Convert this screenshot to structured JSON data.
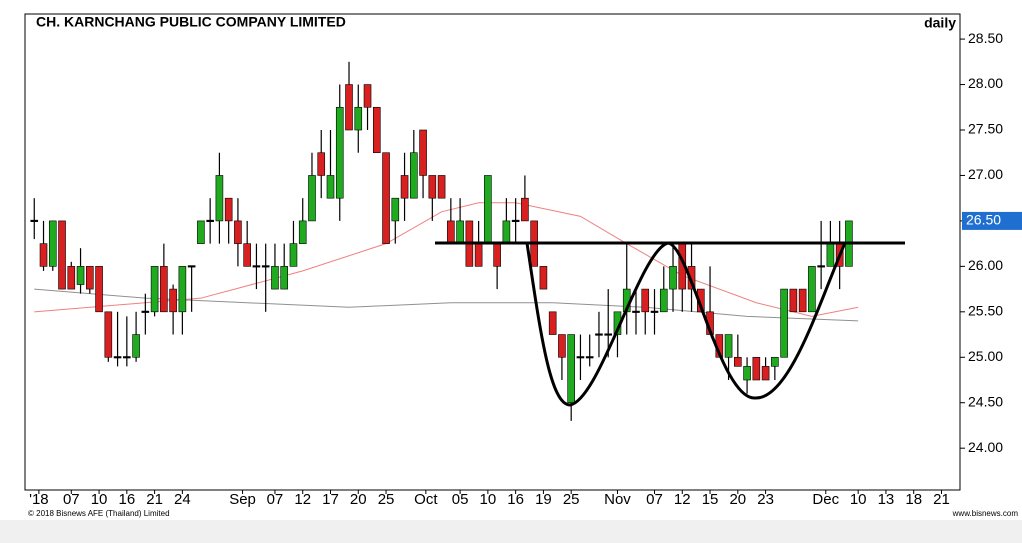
{
  "chart_data": {
    "type": "candlestick",
    "title": "CH. KARNCHANG PUBLIC COMPANY LIMITED",
    "period": "daily",
    "copyright": "© 2018 Bisnews AFE (Thailand) Limited",
    "source": "www.bisnews.com",
    "up_color": "#1faa1f",
    "down_color": "#d82020",
    "open": [
      26.5,
      26.25,
      26.0,
      26.5,
      26.0,
      25.8,
      26.0,
      26.0,
      25.5,
      25.0,
      25.0,
      25.0,
      25.5,
      25.5,
      26.0,
      25.75,
      25.5,
      26.0,
      26.25,
      26.5,
      26.5,
      26.75,
      26.5,
      26.25,
      26.0,
      26.0,
      25.75,
      25.75,
      26.0,
      26.25,
      26.5,
      27.25,
      26.75,
      26.75,
      28.0,
      27.5,
      28.0,
      27.75,
      27.25,
      26.5,
      27.0,
      26.75,
      27.5,
      27.0,
      27.0,
      26.5,
      26.25,
      26.5,
      26.25,
      26.25,
      26.25,
      26.25,
      26.5,
      26.75,
      26.5,
      26.0,
      25.5,
      25.25,
      24.5,
      25.0,
      25.0,
      25.25,
      25.25,
      25.25,
      25.5,
      25.5,
      25.75,
      25.5,
      25.5,
      25.75,
      26.25,
      26.0,
      25.75,
      25.5,
      25.25,
      25.0,
      25.0,
      24.75,
      25.0,
      24.9,
      24.9,
      25.0,
      25.75,
      25.75,
      25.5,
      26.0,
      26.0,
      26.25,
      26.0
    ],
    "high": [
      26.75,
      26.5,
      26.5,
      26.5,
      26.05,
      26.2,
      26.0,
      26.0,
      25.5,
      25.5,
      25.45,
      25.5,
      25.7,
      26.0,
      26.25,
      25.8,
      26.0,
      26.0,
      26.5,
      26.75,
      27.25,
      26.75,
      26.75,
      26.5,
      26.25,
      26.25,
      26.25,
      26.25,
      26.5,
      26.75,
      27.25,
      27.5,
      27.5,
      28.0,
      28.25,
      28.0,
      28.0,
      27.75,
      27.25,
      26.75,
      27.25,
      27.5,
      27.5,
      27.0,
      27.0,
      26.75,
      26.75,
      26.5,
      26.5,
      27.0,
      26.25,
      26.75,
      26.75,
      27.0,
      26.5,
      26.0,
      25.5,
      25.25,
      25.25,
      25.25,
      25.25,
      25.5,
      25.75,
      25.5,
      26.25,
      25.75,
      25.75,
      25.75,
      26.0,
      26.25,
      26.25,
      26.25,
      25.75,
      26.0,
      25.25,
      25.25,
      25.25,
      25.0,
      25.0,
      25.0,
      25.0,
      25.75,
      25.75,
      25.75,
      26.0,
      26.5,
      26.5,
      26.5,
      26.5
    ],
    "low": [
      26.3,
      25.95,
      25.95,
      25.75,
      25.75,
      25.7,
      25.7,
      25.5,
      24.95,
      24.9,
      24.9,
      24.95,
      25.25,
      25.45,
      25.5,
      25.25,
      25.25,
      25.5,
      26.25,
      26.25,
      26.25,
      26.25,
      26.0,
      26.0,
      25.75,
      25.5,
      25.75,
      25.75,
      26.0,
      26.25,
      26.5,
      26.75,
      26.75,
      26.5,
      27.5,
      27.25,
      27.5,
      27.25,
      26.25,
      26.25,
      26.5,
      26.75,
      26.75,
      26.5,
      26.75,
      26.25,
      26.25,
      26.0,
      26.0,
      26.25,
      25.75,
      26.25,
      26.25,
      26.5,
      26.0,
      25.75,
      25.25,
      24.75,
      24.3,
      24.75,
      24.9,
      25.0,
      25.0,
      25.0,
      25.25,
      25.25,
      25.25,
      25.25,
      25.5,
      25.5,
      25.5,
      25.5,
      25.5,
      25.25,
      25.0,
      24.75,
      24.9,
      24.6,
      24.75,
      24.75,
      24.75,
      25.0,
      25.5,
      25.5,
      25.5,
      25.75,
      26.0,
      25.75,
      26.0
    ],
    "close": [
      26.5,
      26.0,
      26.5,
      25.75,
      25.75,
      26.0,
      25.75,
      25.5,
      25.0,
      25.0,
      25.0,
      25.25,
      25.5,
      26.0,
      25.5,
      25.5,
      26.0,
      26.0,
      26.5,
      26.5,
      27.0,
      26.5,
      26.25,
      26.0,
      26.0,
      26.0,
      26.0,
      26.0,
      26.25,
      26.5,
      27.0,
      27.0,
      27.0,
      27.75,
      27.5,
      27.75,
      27.75,
      27.25,
      26.25,
      26.75,
      26.75,
      27.25,
      27.0,
      26.75,
      26.75,
      26.25,
      26.5,
      26.0,
      26.0,
      27.0,
      26.0,
      26.5,
      26.5,
      26.5,
      26.0,
      25.75,
      25.25,
      25.0,
      25.25,
      25.0,
      25.0,
      25.25,
      25.25,
      25.5,
      25.75,
      25.5,
      25.5,
      25.5,
      25.75,
      26.0,
      25.75,
      25.75,
      25.5,
      25.25,
      25.0,
      25.25,
      24.9,
      24.9,
      24.75,
      24.75,
      25.0,
      25.75,
      25.5,
      25.5,
      26.0,
      26.0,
      26.25,
      26.0,
      26.5
    ],
    "moving_averages": [
      {
        "color": "#f08080",
        "x": [
          0,
          18,
          29,
          38,
          44,
          48,
          52,
          59,
          64,
          70,
          78,
          84,
          89
        ],
        "values": [
          25.5,
          25.65,
          25.95,
          26.25,
          26.6,
          26.7,
          26.7,
          26.55,
          26.25,
          25.9,
          25.6,
          25.45,
          25.55
        ]
      },
      {
        "color": "#909090",
        "x": [
          0,
          12,
          23,
          34,
          45,
          56,
          66,
          77,
          89
        ],
        "values": [
          25.75,
          25.65,
          25.6,
          25.55,
          25.6,
          25.6,
          25.55,
          25.45,
          25.4
        ]
      }
    ],
    "last_price": {
      "value": 26.5,
      "label": "26.50"
    },
    "xlim": [
      -1,
      100
    ],
    "xticks": [
      {
        "value": 0.5,
        "label": "'18"
      },
      {
        "value": 4,
        "label": "07"
      },
      {
        "value": 7,
        "label": "10"
      },
      {
        "value": 10,
        "label": "16"
      },
      {
        "value": 13,
        "label": "21"
      },
      {
        "value": 16,
        "label": "24"
      },
      {
        "value": 22.5,
        "label": "Sep"
      },
      {
        "value": 26,
        "label": "07"
      },
      {
        "value": 29,
        "label": "12"
      },
      {
        "value": 32,
        "label": "17"
      },
      {
        "value": 35,
        "label": "20"
      },
      {
        "value": 38,
        "label": "25"
      },
      {
        "value": 42.3,
        "label": "Oct"
      },
      {
        "value": 46,
        "label": "05"
      },
      {
        "value": 49,
        "label": "10"
      },
      {
        "value": 52,
        "label": "16"
      },
      {
        "value": 55,
        "label": "19"
      },
      {
        "value": 58,
        "label": "25"
      },
      {
        "value": 63,
        "label": "Nov"
      },
      {
        "value": 67,
        "label": "07"
      },
      {
        "value": 70,
        "label": "12"
      },
      {
        "value": 73,
        "label": "15"
      },
      {
        "value": 76,
        "label": "20"
      },
      {
        "value": 79,
        "label": "23"
      },
      {
        "value": 85.5,
        "label": "Dec"
      },
      {
        "value": 89,
        "label": "10"
      },
      {
        "value": 92,
        "label": "13"
      },
      {
        "value": 95,
        "label": "18"
      },
      {
        "value": 98,
        "label": "21"
      }
    ],
    "ylim": [
      23.54,
      28.6
    ],
    "yticks": [
      {
        "value": 24,
        "label": "24.00"
      },
      {
        "value": 24.5,
        "label": "24.50"
      },
      {
        "value": 25,
        "label": "25.00"
      },
      {
        "value": 25.5,
        "label": "25.50"
      },
      {
        "value": 26,
        "label": "26.00"
      },
      {
        "value": 26.5,
        "label": "26.50"
      },
      {
        "value": 27,
        "label": "27.00"
      },
      {
        "value": 27.5,
        "label": "27.50"
      },
      {
        "value": 28,
        "label": "28.00"
      },
      {
        "value": 28.5,
        "label": "28.50"
      }
    ]
  }
}
